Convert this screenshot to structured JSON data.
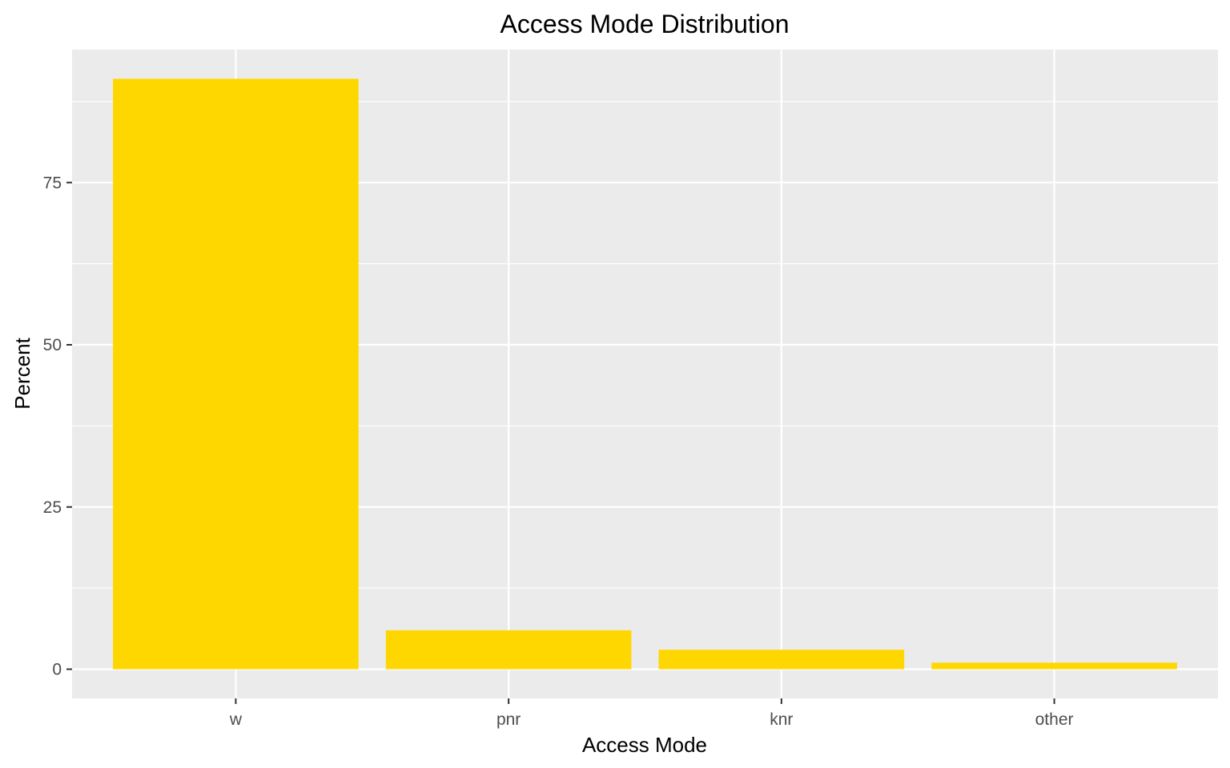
{
  "chart_data": {
    "type": "bar",
    "title": "Access Mode Distribution",
    "xlabel": "Access Mode",
    "ylabel": "Percent",
    "categories": [
      "w",
      "pnr",
      "knr",
      "other"
    ],
    "values": [
      91,
      6,
      3,
      1
    ],
    "ylim": [
      -4.5,
      95.5
    ],
    "yticks": [
      0,
      25,
      50,
      75
    ],
    "y_minor_ticks": [
      12.5,
      37.5,
      62.5,
      87.5
    ],
    "grid": true,
    "legend": "none",
    "colors": {
      "bar": "#FFD700",
      "panel": "#EBEBEB",
      "grid": "#FFFFFF",
      "tick": "#333333"
    }
  }
}
